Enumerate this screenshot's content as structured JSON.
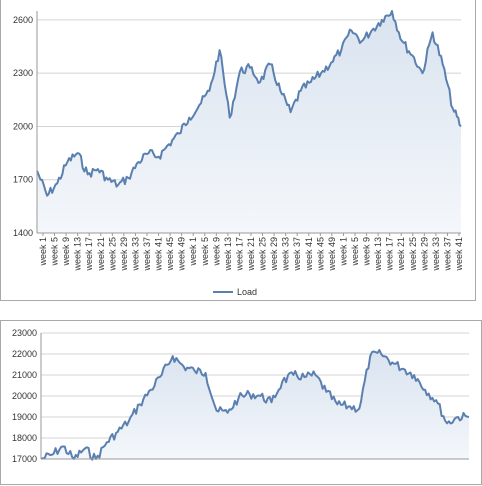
{
  "colors": {
    "line": "#5b80b0",
    "fill_top": "#d9e3ef",
    "fill_bottom": "#f4f7fb",
    "grid": "#d4d4d4",
    "axis": "#9a9a9a"
  },
  "chart_data": [
    {
      "type": "area",
      "title": "",
      "xlabel": "",
      "ylabel": "",
      "ylim": [
        1400,
        2650
      ],
      "yticks": [
        1400,
        1700,
        2000,
        2300,
        2600
      ],
      "grid": true,
      "legend": "bottom",
      "x_tick_labels": [
        "week 1",
        "week 5",
        "week 9",
        "week 13",
        "week 17",
        "week 21",
        "week 25",
        "week 29",
        "week 33",
        "week 37",
        "week 41",
        "week 45",
        "week 49",
        "week 1",
        "week 5",
        "week 9",
        "week 13",
        "week 17",
        "week 21",
        "week 25",
        "week 29",
        "week 33",
        "week 37",
        "week 41",
        "week 45",
        "week 49",
        "week 1",
        "week 5",
        "week 9",
        "week 13",
        "week 17",
        "week 21",
        "week 25",
        "week 29",
        "week 33",
        "week 37",
        "week 41"
      ],
      "x": [
        1,
        6,
        11,
        16,
        21,
        26,
        31,
        36,
        41,
        46,
        51,
        56,
        61,
        66,
        71,
        76,
        81,
        86,
        91,
        96,
        101,
        106,
        111,
        116,
        121,
        126,
        131,
        136,
        141,
        146,
        151,
        156,
        161,
        166,
        171,
        176,
        181,
        186,
        191,
        196,
        201,
        206,
        210
      ],
      "series": [
        {
          "name": "Load",
          "values": [
            1750,
            1610,
            1680,
            1800,
            1850,
            1730,
            1760,
            1700,
            1670,
            1710,
            1800,
            1850,
            1830,
            1900,
            1960,
            2050,
            2120,
            2200,
            2430,
            2050,
            2310,
            2330,
            2250,
            2350,
            2200,
            2080,
            2200,
            2250,
            2300,
            2360,
            2430,
            2540,
            2480,
            2540,
            2600,
            2650,
            2480,
            2400,
            2300,
            2530,
            2350,
            2100,
            2000
          ]
        }
      ]
    },
    {
      "type": "area",
      "title": "",
      "xlabel": "",
      "ylabel": "",
      "ylim": [
        17000,
        23000
      ],
      "yticks": [
        17000,
        18000,
        19000,
        20000,
        21000,
        22000,
        23000
      ],
      "grid": true,
      "x": [
        1,
        8,
        15,
        22,
        29,
        36,
        43,
        50,
        57,
        64,
        71,
        78,
        85,
        92,
        99,
        106,
        113,
        120,
        127,
        134,
        141,
        148,
        155,
        162,
        169,
        176,
        183,
        190,
        197,
        204,
        211,
        218,
        225,
        232,
        239,
        246,
        253,
        260,
        267,
        274
      ],
      "series": [
        {
          "name": "",
          "values": [
            17000,
            17200,
            17600,
            17000,
            17500,
            17000,
            17800,
            18300,
            18800,
            19600,
            20300,
            21000,
            21900,
            21400,
            21200,
            21100,
            19300,
            19200,
            19900,
            20100,
            20000,
            19700,
            20700,
            21000,
            20900,
            21000,
            20200,
            19600,
            19500,
            19400,
            21900,
            22000,
            21600,
            21300,
            21000,
            20300,
            19800,
            18700,
            19000,
            19000
          ]
        }
      ]
    }
  ]
}
